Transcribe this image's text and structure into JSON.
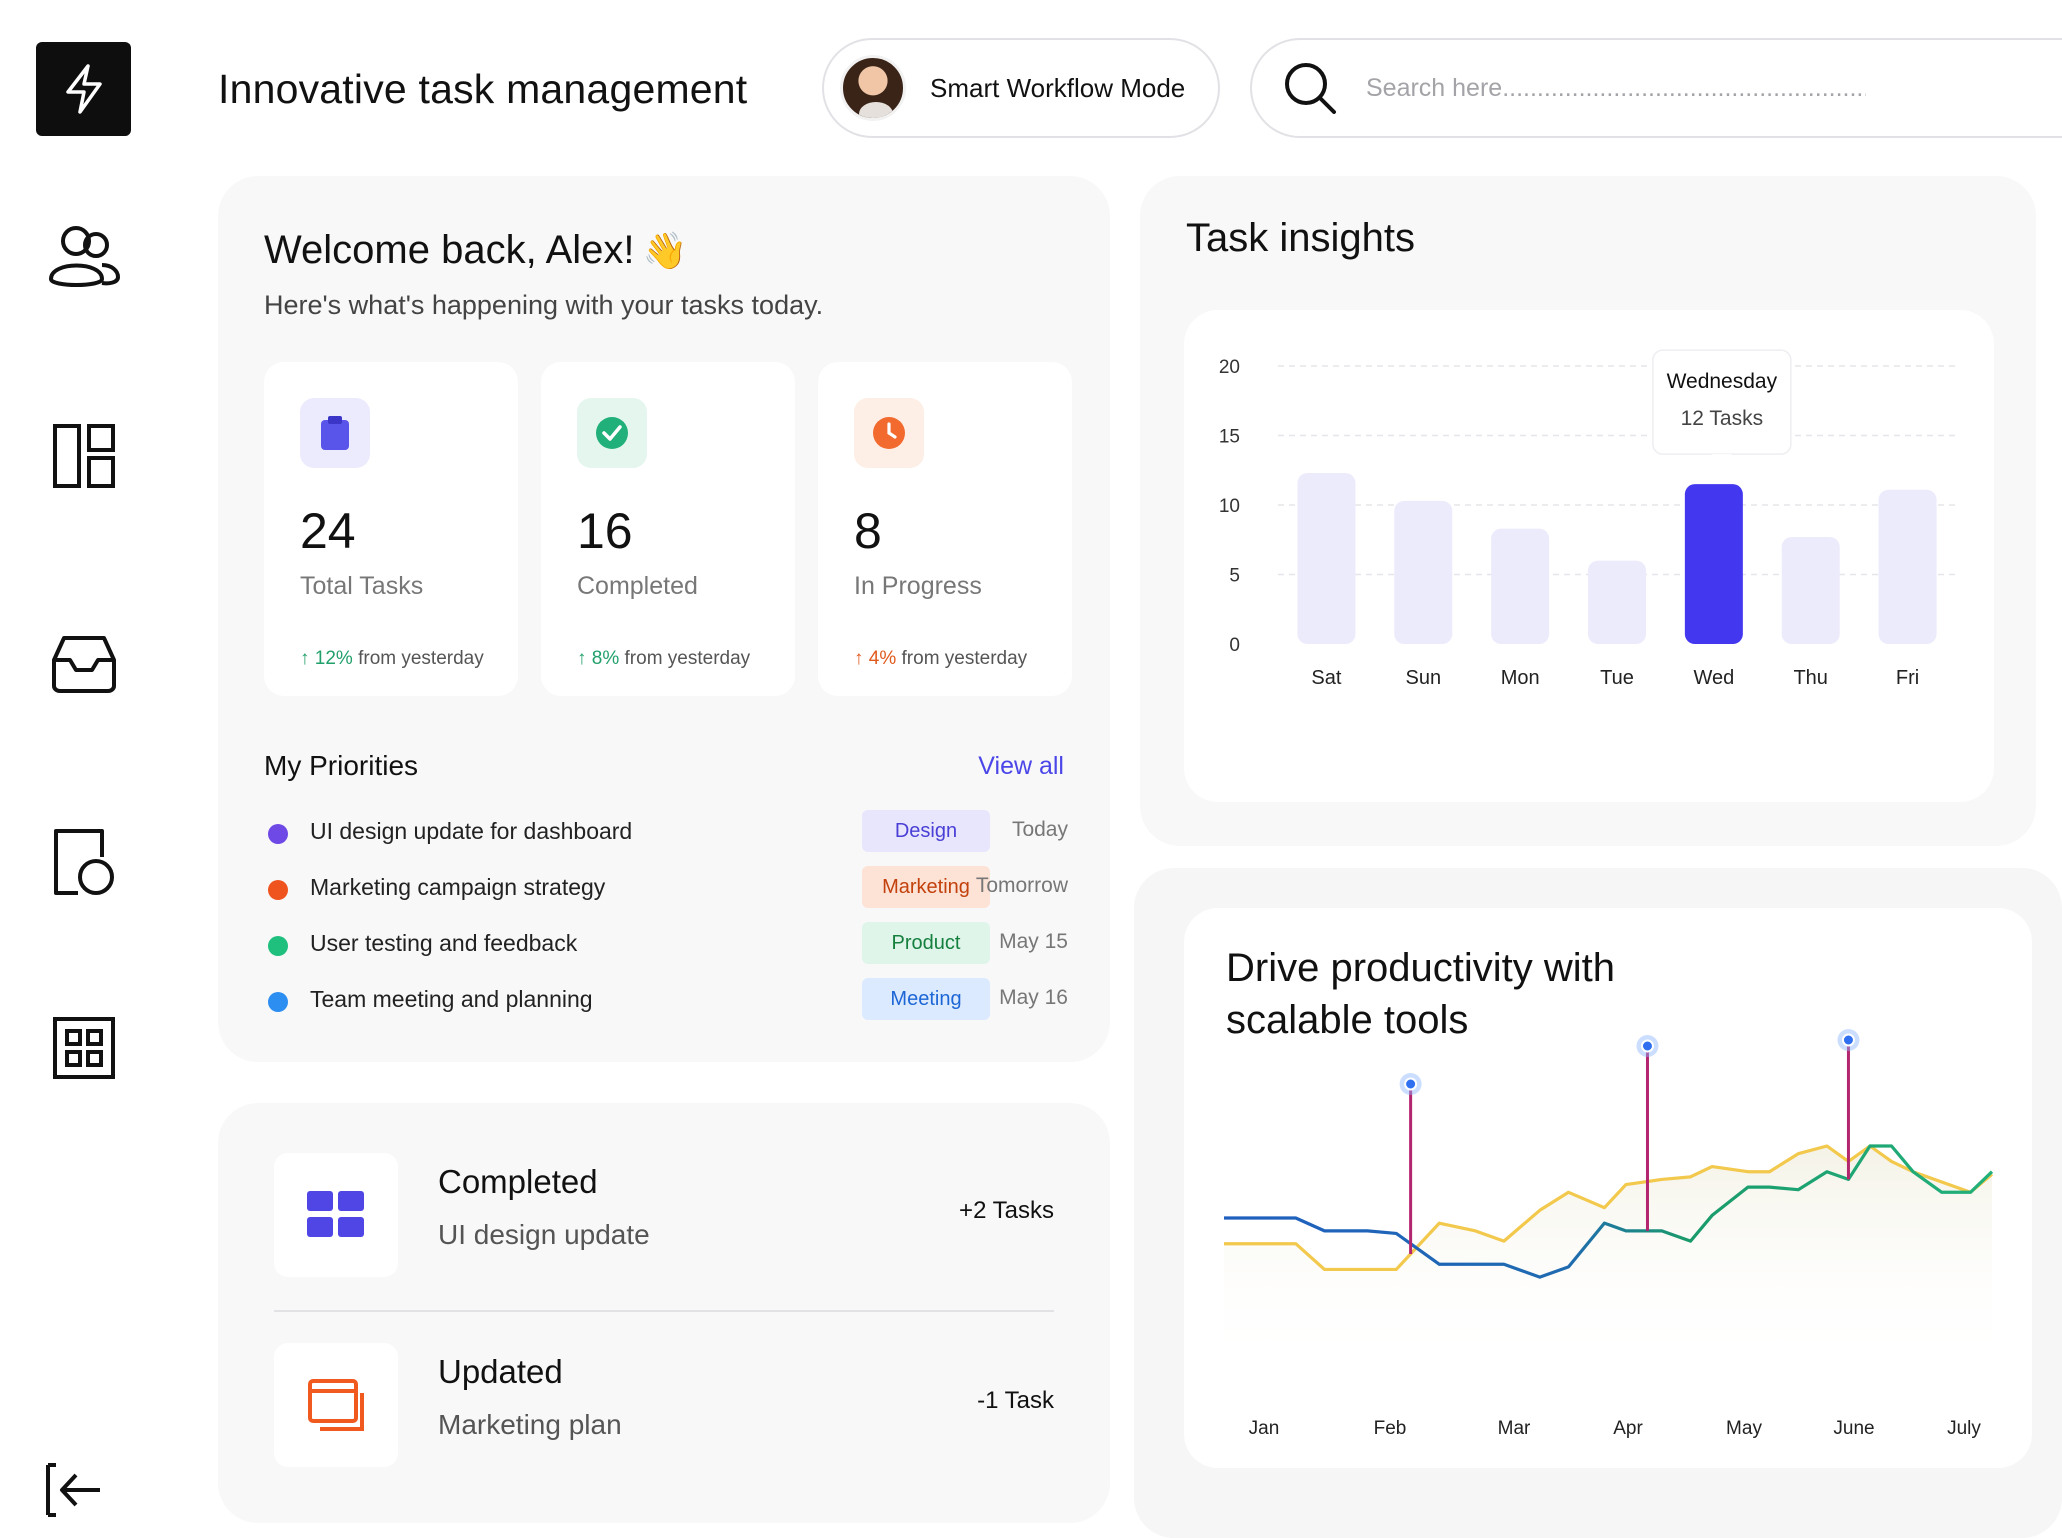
{
  "header": {
    "title": "Innovative task management",
    "mode_label": "Smart Workflow Mode",
    "search_placeholder": "Search here........................................................"
  },
  "sidebar": {
    "items": [
      {
        "icon": "lightning-icon"
      },
      {
        "icon": "users-icon"
      },
      {
        "icon": "layout-icon"
      },
      {
        "icon": "inbox-icon"
      },
      {
        "icon": "document-icon"
      },
      {
        "icon": "grid-icon"
      },
      {
        "icon": "logout-icon"
      }
    ]
  },
  "welcome": {
    "title": "Welcome back, Alex!",
    "emoji": "👋",
    "subtitle": "Here's what's happening with your tasks today."
  },
  "stats": [
    {
      "value": "24",
      "label": "Total Tasks",
      "arrow": "↑",
      "pct": "12%",
      "suffix": " from yesterday",
      "color": "#22a06b",
      "icon": "clipboard-icon",
      "icon_bg": "#ecebfd",
      "icon_color": "#5a55ea"
    },
    {
      "value": "16",
      "label": "Completed",
      "arrow": "↑",
      "pct": "8%",
      "suffix": " from yesterday",
      "color": "#22a06b",
      "icon": "check-circle-icon",
      "icon_bg": "#e4f6ee",
      "icon_color": "#22b07a"
    },
    {
      "value": "8",
      "label": "In Progress",
      "arrow": "↑",
      "pct": "4%",
      "suffix": " from yesterday",
      "color": "#e05a1e",
      "icon": "clock-icon",
      "icon_bg": "#fdeee6",
      "icon_color": "#f26a2e"
    }
  ],
  "priorities": {
    "title": "My Priorities",
    "view_all": "View all",
    "items": [
      {
        "name": "UI design update for dashboard",
        "tag": "Design",
        "date": "Today",
        "dot": "#6e49e6",
        "tag_bg": "#e8e6fc",
        "tag_color": "#4a3fd6"
      },
      {
        "name": "Marketing campaign strategy",
        "tag": "Marketing",
        "date": "Tomorrow",
        "dot": "#f0541e",
        "tag_bg": "#fde2d6",
        "tag_color": "#c2410c"
      },
      {
        "name": "User testing and feedback",
        "tag": "Product",
        "date": "May 15",
        "dot": "#1fbf7e",
        "tag_bg": "#dff5ea",
        "tag_color": "#15803d"
      },
      {
        "name": "Team meeting and planning",
        "tag": "Meeting",
        "date": "May 16",
        "dot": "#2c8ef0",
        "tag_bg": "#dbeafe",
        "tag_color": "#1d66d6"
      }
    ]
  },
  "activity": [
    {
      "title": "Completed",
      "subtitle": "UI design update",
      "count": "+2 Tasks",
      "icon": "grid-squares-icon",
      "color": "#4f46e5"
    },
    {
      "title": "Updated",
      "subtitle": "Marketing plan",
      "count": "-1 Task",
      "icon": "windows-icon",
      "color": "#f05a1e"
    }
  ],
  "insights": {
    "title": "Task insights",
    "tooltip": {
      "day": "Wednesday",
      "value": "12 Tasks"
    }
  },
  "drive": {
    "title": "Drive productivity with scalable tools"
  },
  "chart_data": [
    {
      "type": "bar",
      "categories": [
        "Sat",
        "Sun",
        "Mon",
        "Tue",
        "Wed",
        "Thu",
        "Fri"
      ],
      "values": [
        12.3,
        10.3,
        8.3,
        6,
        11.5,
        7.7,
        11.1
      ],
      "highlight": "Wed",
      "ylim": [
        0,
        20
      ],
      "yticks": [
        0,
        5,
        10,
        15,
        20
      ],
      "bar_color": "#ecebfc",
      "highlight_color": "#4338f0",
      "grid": true
    },
    {
      "type": "line",
      "categories": [
        "Jan",
        "Feb",
        "Mar",
        "Apr",
        "May",
        "June",
        "July"
      ],
      "x": [
        0,
        0.5,
        1,
        1.4,
        2,
        2.4,
        3,
        3.5,
        3.9,
        4.4,
        4.8,
        5.3,
        5.6,
        6.1,
        6.5,
        6.8,
        7.3,
        7.6,
        8,
        8.4,
        8.7,
        9,
        9.3,
        9.6,
        10,
        10.4,
        10.7
      ],
      "series": [
        {
          "color": "#f2c94c",
          "values": [
            5.5,
            5.5,
            5.5,
            4.5,
            4.5,
            4.5,
            6.3,
            6,
            5.6,
            6.8,
            7.5,
            6.9,
            7.8,
            8,
            8.1,
            8.5,
            8.3,
            8.3,
            9,
            9.3,
            8.7,
            9.3,
            8.7,
            8.3,
            7.9,
            7.5,
            8.2
          ]
        },
        {
          "color": "#1f5fbf",
          "values": [
            6.5,
            6.5,
            6.5,
            6,
            6,
            5.9,
            4.7,
            4.7,
            4.7,
            4.2,
            4.6,
            6.3,
            6,
            6,
            5.6,
            6.6,
            7.7,
            7.7,
            7.6,
            8.3,
            8,
            9.3,
            9.3,
            8.3,
            7.5,
            7.5,
            8.3
          ]
        }
      ],
      "markers": [
        {
          "month": "Feb",
          "at": 2.6
        },
        {
          "month": "Apr",
          "at": 5.9
        },
        {
          "month": "June",
          "at": 8.7
        }
      ]
    }
  ]
}
